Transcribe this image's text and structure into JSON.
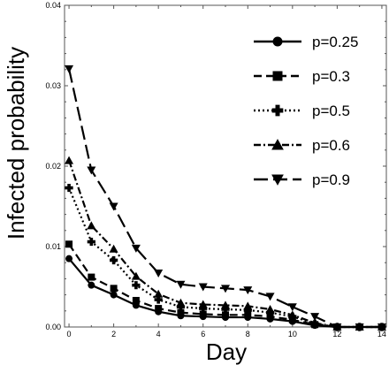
{
  "chart_data": {
    "type": "line",
    "xlabel": "Day",
    "ylabel": "Infected probability",
    "xlim": [
      -0.2,
      14.2
    ],
    "ylim": [
      0,
      0.04
    ],
    "xticks": [
      "0",
      "2",
      "4",
      "6",
      "8",
      "10",
      "12",
      "14"
    ],
    "yticks": [
      "0.00",
      "0.01",
      "0.02",
      "0.03",
      "0.04"
    ],
    "x": [
      0,
      1,
      2,
      3,
      4,
      5,
      6,
      7,
      8,
      9,
      10,
      11,
      12,
      13,
      14
    ],
    "legend_position": "top-right",
    "series": [
      {
        "name": "p=0.25",
        "marker": "circle",
        "dash": "solid",
        "values": [
          0.0085,
          0.0052,
          0.004,
          0.0027,
          0.0019,
          0.0014,
          0.0013,
          0.0012,
          0.0012,
          0.001,
          0.0007,
          0.0002,
          0.0,
          0.0,
          0.0
        ]
      },
      {
        "name": "p=0.3",
        "marker": "square",
        "dash": "dashed",
        "values": [
          0.0103,
          0.0062,
          0.0048,
          0.0033,
          0.0023,
          0.0018,
          0.0016,
          0.0015,
          0.0015,
          0.0013,
          0.0009,
          0.0003,
          0.0,
          0.0,
          0.0
        ]
      },
      {
        "name": "p=0.5",
        "marker": "plus",
        "dash": "dotted",
        "values": [
          0.0173,
          0.0106,
          0.0083,
          0.0052,
          0.0034,
          0.0025,
          0.0023,
          0.0022,
          0.0021,
          0.0018,
          0.0013,
          0.0004,
          0.0,
          0.0,
          0.0
        ]
      },
      {
        "name": "p=0.6",
        "marker": "triangle",
        "dash": "dashdot",
        "values": [
          0.0207,
          0.0126,
          0.0097,
          0.0063,
          0.0041,
          0.003,
          0.0028,
          0.0027,
          0.0026,
          0.0022,
          0.0015,
          0.0005,
          0.0,
          0.0,
          0.0
        ]
      },
      {
        "name": "p=0.9",
        "marker": "triangle-down",
        "dash": "longdash",
        "values": [
          0.0321,
          0.0195,
          0.015,
          0.0098,
          0.0067,
          0.0053,
          0.005,
          0.0048,
          0.0046,
          0.0038,
          0.0025,
          0.0013,
          0.0,
          0.0,
          0.0
        ]
      }
    ]
  }
}
